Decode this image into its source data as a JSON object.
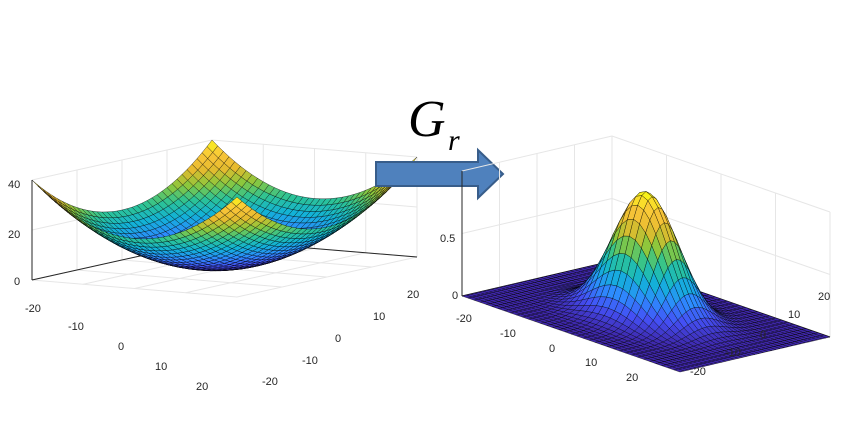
{
  "operator": {
    "symbol": "G",
    "subscript": "r"
  },
  "colors": {
    "arrow_fill": "#4f81bd",
    "arrow_stroke": "#385d8a",
    "axis": "#262626",
    "grid": "#e6e6e6",
    "mesh_line": "#000000",
    "colormap": [
      "#3e26a8",
      "#4450f5",
      "#2d8cfe",
      "#12b2d7",
      "#2cc395",
      "#8cc73c",
      "#e6bb2e",
      "#fac63a",
      "#f9fb15"
    ]
  },
  "chart_data": [
    {
      "type": "surface",
      "description_function": "x^2/20 + y^2/20 (paraboloid)",
      "xlim": [
        -20,
        20
      ],
      "ylim": [
        -20,
        20
      ],
      "zlim": [
        0,
        40
      ],
      "z_ticks": [
        "0",
        "20",
        "40"
      ],
      "x_ticks": [
        "-20",
        "-10",
        "0",
        "10",
        "20"
      ],
      "y_ticks": [
        "-20",
        "-10",
        "0",
        "10",
        "20"
      ],
      "grid": true
    },
    {
      "type": "surface",
      "description_function": "exp(-(x^2+y^2)/50) (gaussian)",
      "xlim": [
        -20,
        20
      ],
      "ylim": [
        -20,
        20
      ],
      "zlim": [
        0,
        1
      ],
      "z_ticks": [
        "0",
        "0.5"
      ],
      "x_ticks": [
        "-20",
        "-10",
        "0",
        "10",
        "20"
      ],
      "y_ticks": [
        "-20",
        "-10",
        "0",
        "10",
        "20"
      ],
      "grid": true
    }
  ]
}
